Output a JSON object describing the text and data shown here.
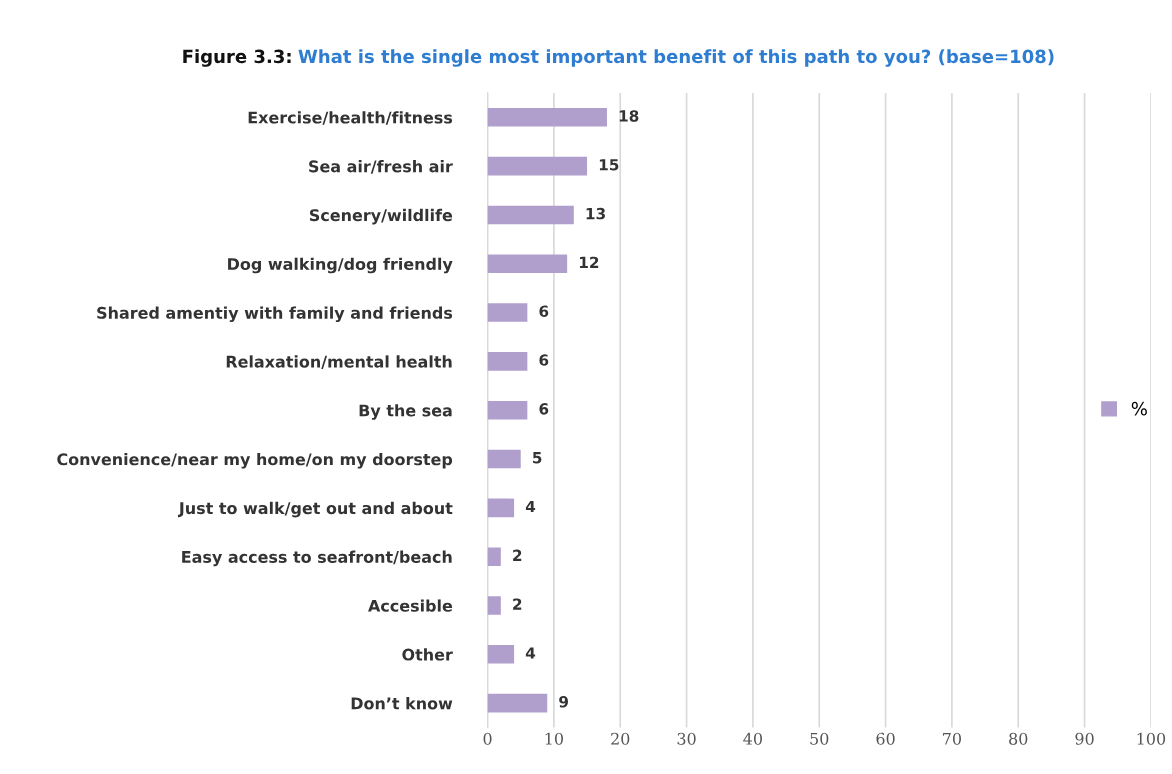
{
  "chart_data": {
    "type": "bar",
    "orientation": "horizontal",
    "title": "Figure 3.3:",
    "subtitle": "What is the single most important benefit of this path to you? (base=108)",
    "categories": [
      "Exercise/health/fitness",
      "Sea air/fresh air",
      "Scenery/wildlife",
      "Dog walking/dog friendly",
      "Shared amentiy with family and friends",
      "Relaxation/mental health",
      "By the sea",
      "Convenience/near my home/on my doorstep",
      "Just to walk/get out and about",
      "Easy access to seafront/beach",
      "Accesible",
      "Other",
      "Don’t know"
    ],
    "series": [
      {
        "name": "%",
        "color": "#b09fcc",
        "values": [
          18,
          15,
          13,
          12,
          6,
          6,
          6,
          5,
          4,
          2,
          2,
          4,
          9
        ]
      }
    ],
    "xlim": [
      0,
      100
    ],
    "xticks": [
      0,
      10,
      20,
      30,
      40,
      50,
      60,
      70,
      80,
      90,
      100
    ],
    "grid": "x",
    "legend": "right",
    "data_labels": true
  }
}
